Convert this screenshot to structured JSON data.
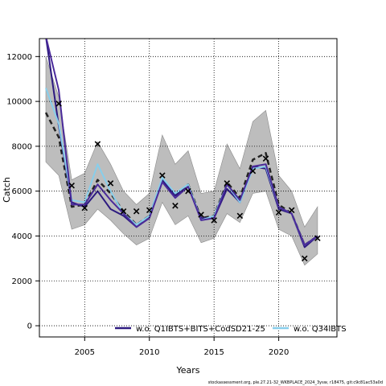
{
  "chart_data": {
    "type": "line",
    "xlabel": "Years",
    "ylabel": "Catch",
    "xlim": [
      2001.5,
      2024.5
    ],
    "ylim": [
      -500,
      12800
    ],
    "x_ticks": [
      2005,
      2010,
      2015,
      2020
    ],
    "y_ticks": [
      0,
      2000,
      4000,
      6000,
      8000,
      10000,
      12000
    ],
    "grid": true,
    "legend_position": "bottom",
    "footer": "stockassessment.org, ple.27.21-32_WKBPLACE_2024_3ysw, r18475, git:c9c81ac53a0d",
    "x": [
      2002,
      2003,
      2004,
      2005,
      2006,
      2007,
      2008,
      2009,
      2010,
      2011,
      2012,
      2013,
      2014,
      2015,
      2016,
      2017,
      2018,
      2019,
      2020,
      2021,
      2022,
      2023
    ],
    "band": {
      "lower": [
        7300,
        6700,
        4300,
        4500,
        5200,
        4700,
        4100,
        3600,
        3900,
        5500,
        4500,
        4900,
        3700,
        3900,
        5000,
        4600,
        5900,
        6000,
        4300,
        4000,
        2700,
        3200
      ],
      "upper": [
        12000,
        10200,
        6500,
        6800,
        8200,
        7200,
        6000,
        5400,
        5900,
        8500,
        7200,
        7800,
        5900,
        6000,
        8100,
        7000,
        9100,
        9600,
        6700,
        6000,
        4400,
        5300
      ]
    },
    "observations": [
      {
        "x": 2003,
        "y": 9900
      },
      {
        "x": 2004,
        "y": 6250
      },
      {
        "x": 2005,
        "y": 5250
      },
      {
        "x": 2006,
        "y": 8100
      },
      {
        "x": 2007,
        "y": 6350
      },
      {
        "x": 2008,
        "y": 5100
      },
      {
        "x": 2009,
        "y": 5100
      },
      {
        "x": 2010,
        "y": 5150
      },
      {
        "x": 2011,
        "y": 6700
      },
      {
        "x": 2012,
        "y": 5350
      },
      {
        "x": 2013,
        "y": 6000
      },
      {
        "x": 2014,
        "y": 4950
      },
      {
        "x": 2015,
        "y": 4700
      },
      {
        "x": 2016,
        "y": 6350
      },
      {
        "x": 2017,
        "y": 4900
      },
      {
        "x": 2018,
        "y": 6900
      },
      {
        "x": 2019,
        "y": 7450
      },
      {
        "x": 2020,
        "y": 5050
      },
      {
        "x": 2021,
        "y": 5150
      },
      {
        "x": 2022,
        "y": 3000
      },
      {
        "x": 2023,
        "y": 3900
      }
    ],
    "series": [
      {
        "name": "",
        "color": "#222222",
        "dash": "6,4",
        "width": 2.5,
        "values": [
          9500,
          8400,
          5300,
          5400,
          6500,
          5900,
          5100,
          4500,
          4900,
          6500,
          5800,
          6300,
          4800,
          4900,
          6400,
          5700,
          7400,
          7700,
          5400,
          5000,
          3600,
          4000
        ]
      },
      {
        "name": "w.o. Q1IBTS+BITS+CodSD21-25",
        "color": "#2d1a80",
        "dash": "",
        "width": 2,
        "values": [
          12900,
          8900,
          5500,
          5300,
          6000,
          5200,
          4900,
          4400,
          4800,
          6500,
          5800,
          6200,
          4800,
          4800,
          6100,
          5500,
          7100,
          7000,
          5200,
          5000,
          3500,
          4000
        ]
      },
      {
        "name": "w.o. Q34IBTS",
        "color": "#87ceeb",
        "dash": "",
        "width": 2,
        "values": [
          10600,
          9000,
          5600,
          5500,
          7200,
          6000,
          5000,
          4500,
          4900,
          6600,
          5900,
          6300,
          4700,
          4900,
          6300,
          5500,
          7000,
          7100,
          5300,
          5000,
          3600,
          4000
        ]
      },
      {
        "name": "",
        "color": "#4a2a9a",
        "dash": "",
        "width": 2,
        "values": [
          12900,
          10500,
          5400,
          5400,
          6300,
          5600,
          5000,
          4400,
          4800,
          6400,
          5700,
          6200,
          4700,
          4800,
          6300,
          5600,
          7100,
          7200,
          5300,
          5000,
          3600,
          4000
        ]
      }
    ]
  }
}
